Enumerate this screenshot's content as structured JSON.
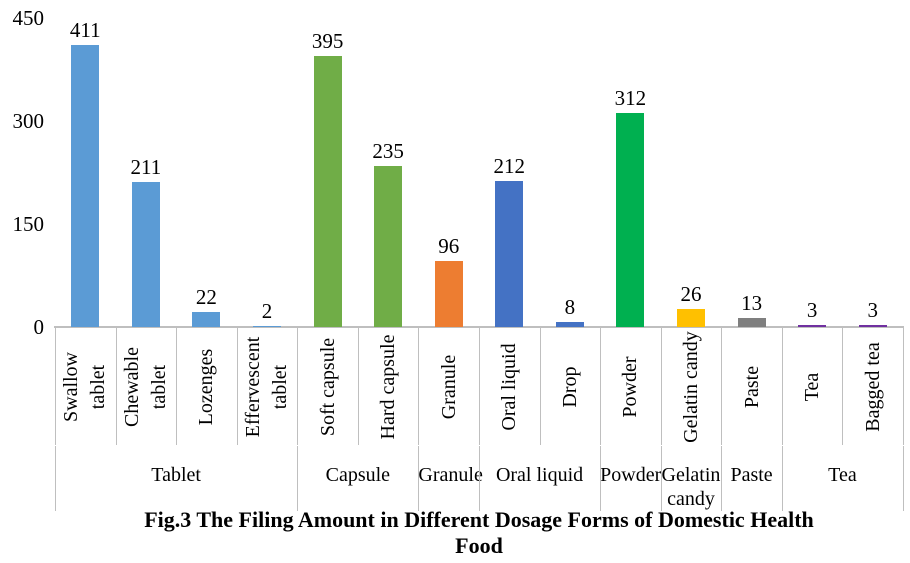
{
  "chart_data": {
    "type": "bar",
    "title": "Fig.3 The Filing Amount in Different Dosage Forms of Domestic Health Food",
    "title_lines": [
      "Fig.3 The Filing Amount in Different Dosage Forms of Domestic Health",
      "Food"
    ],
    "xlabel": "",
    "ylabel": "",
    "ylim": [
      0,
      450
    ],
    "yticks": [
      0,
      150,
      300,
      450
    ],
    "grid": false,
    "legend": "none",
    "axis_color": "#BFBFBF",
    "text_color": "#000000",
    "groups": [
      {
        "label": "Tablet",
        "color": "#5B9BD5",
        "bars": [
          {
            "label": "Swallow tablet",
            "value": 411
          },
          {
            "label": "Chewable tablet",
            "value": 211
          },
          {
            "label": "Lozenges",
            "value": 22
          },
          {
            "label": "Effervescent tablet",
            "value": 2
          }
        ]
      },
      {
        "label": "Capsule",
        "color": "#70AD47",
        "bars": [
          {
            "label": "Soft capsule",
            "value": 395
          },
          {
            "label": "Hard capsule",
            "value": 235
          }
        ]
      },
      {
        "label": "Granule",
        "color": "#ED7D31",
        "bars": [
          {
            "label": "Granule",
            "value": 96
          }
        ]
      },
      {
        "label": "Oral liquid",
        "color": "#4472C4",
        "bars": [
          {
            "label": "Oral liquid",
            "value": 212
          },
          {
            "label": "Drop",
            "value": 8
          }
        ]
      },
      {
        "label": "Powder",
        "color": "#00B050",
        "bars": [
          {
            "label": "Powder",
            "value": 312
          }
        ]
      },
      {
        "label": "Gelatin candy",
        "color": "#FFC000",
        "bars": [
          {
            "label": "Gelatin candy",
            "value": 26
          }
        ]
      },
      {
        "label": "Paste",
        "color": "#7F7F7F",
        "bars": [
          {
            "label": "Paste",
            "value": 13
          }
        ]
      },
      {
        "label": "Tea",
        "color": "#7030A0",
        "bars": [
          {
            "label": "Tea",
            "value": 3
          },
          {
            "label": "Bagged tea",
            "value": 3
          }
        ]
      }
    ]
  }
}
